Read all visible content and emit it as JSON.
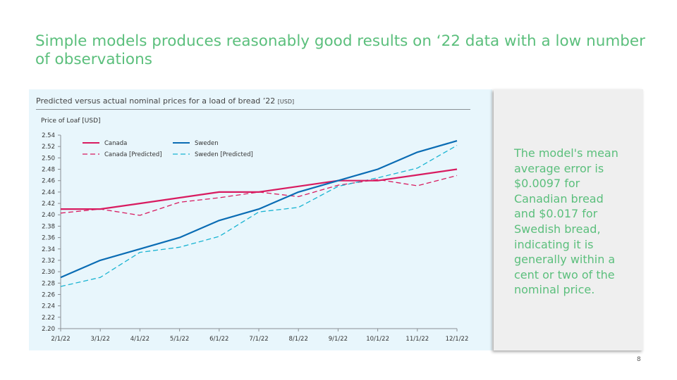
{
  "title": "Simple models produces reasonably good results on ‘22 data with a low number of observations",
  "page_number": "8",
  "side_text": "The model's mean average error is $0.0097 for Canadian bread and $0.017 for Swedish bread, indicating it is generally within a cent or two of the nominal price.",
  "colors": {
    "accent": "#5bbf7c",
    "canada": "#d81b60",
    "sweden": "#0a6cb4",
    "sweden_predicted": "#19b4d2",
    "panel_bg": "#e8f6fc"
  },
  "chart_data": {
    "type": "line",
    "title": "Predicted versus actual nominal prices for a load of bread ’22",
    "title_unit": "[USD]",
    "ylabel": "Price of Loaf [USD]",
    "xlabel": "",
    "categories": [
      "2/1/22",
      "3/1/22",
      "4/1/22",
      "5/1/22",
      "6/1/22",
      "7/1/22",
      "8/1/22",
      "9/1/22",
      "10/1/22",
      "11/1/22",
      "12/1/22"
    ],
    "ylim": [
      2.2,
      2.54
    ],
    "yticks": [
      "2.54",
      "2.52",
      "2.50",
      "2.48",
      "2.46",
      "2.44",
      "2.42",
      "2.40",
      "2.38",
      "2.36",
      "2.34",
      "2.32",
      "2.30",
      "2.28",
      "2.26",
      "2.24",
      "2.22",
      "2.20"
    ],
    "grid": false,
    "legend_position": "top-left",
    "series": [
      {
        "name": "Canada",
        "color": "#d81b60",
        "style": "solid",
        "values": [
          2.41,
          2.41,
          2.42,
          2.43,
          2.44,
          2.44,
          2.45,
          2.46,
          2.46,
          2.47,
          2.48
        ]
      },
      {
        "name": "Sweden",
        "color": "#0a6cb4",
        "style": "solid",
        "values": [
          2.29,
          2.32,
          2.34,
          2.36,
          2.39,
          2.41,
          2.44,
          2.46,
          2.48,
          2.51,
          2.53
        ]
      },
      {
        "name": "Canada [Predicted]",
        "color": "#d81b60",
        "style": "dashed",
        "values": [
          2.403,
          2.41,
          2.399,
          2.422,
          2.43,
          2.44,
          2.432,
          2.452,
          2.462,
          2.451,
          2.469
        ]
      },
      {
        "name": "Sweden [Predicted]",
        "color": "#19b4d2",
        "style": "dashed",
        "values": [
          2.274,
          2.29,
          2.334,
          2.343,
          2.362,
          2.405,
          2.413,
          2.45,
          2.465,
          2.482,
          2.522
        ]
      }
    ]
  }
}
